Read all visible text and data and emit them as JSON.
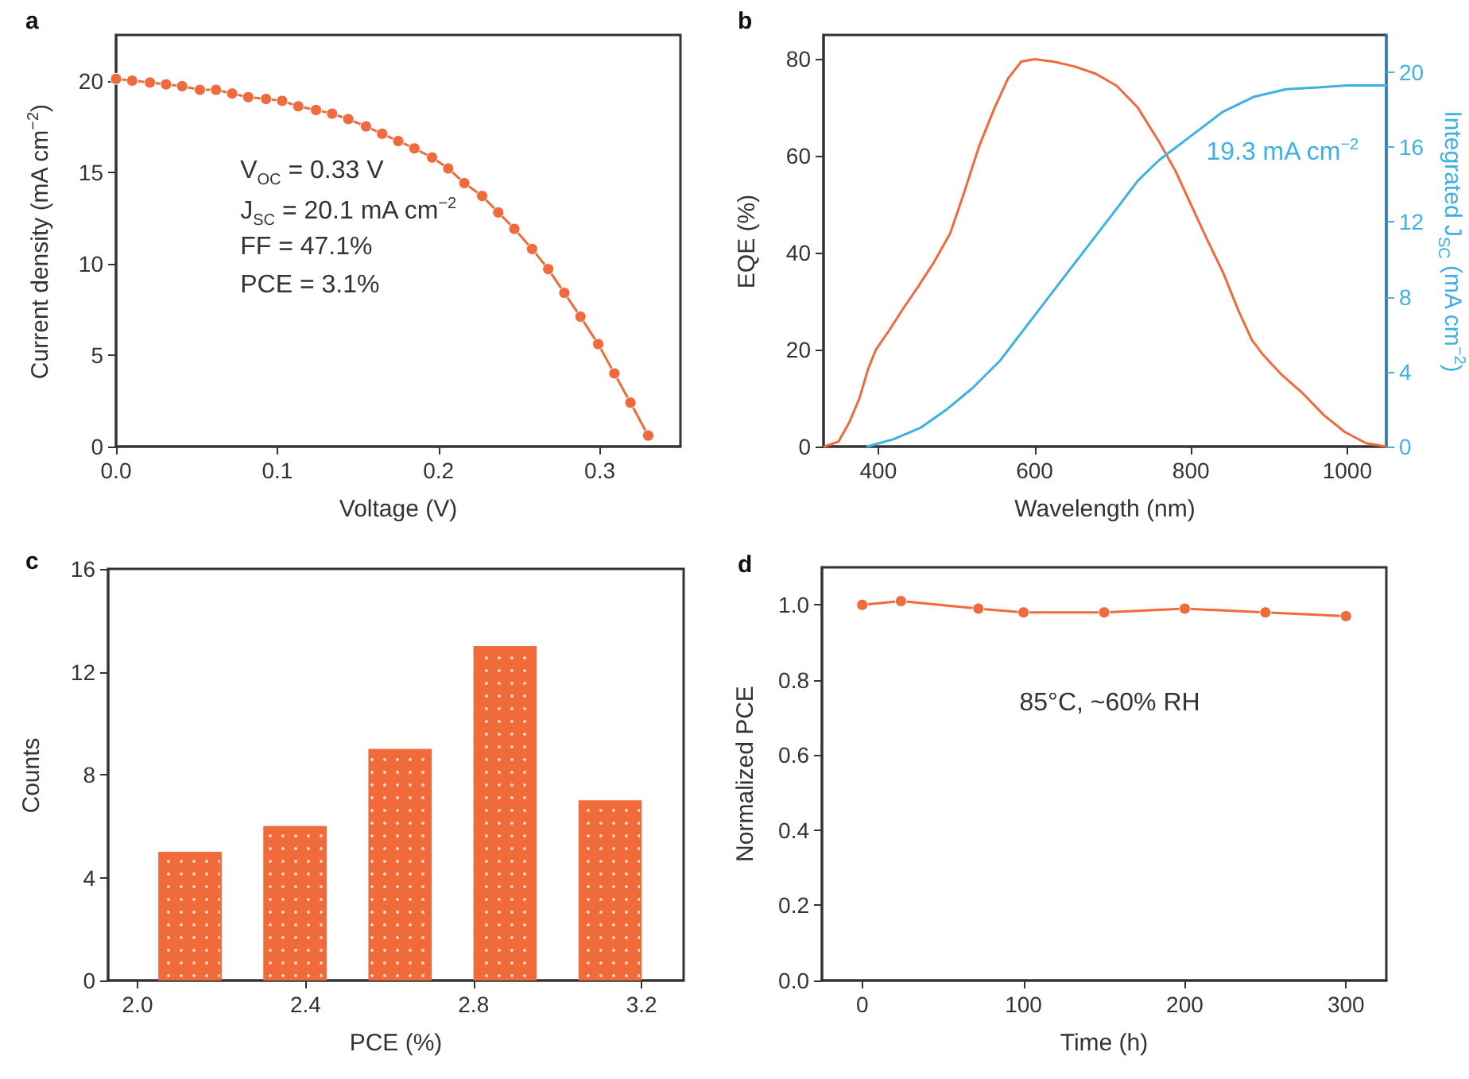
{
  "chart_data": [
    {
      "type": "line",
      "title": "a",
      "xlabel": "Voltage (V)",
      "ylabel": "Current density (mA cm$^{−2}$)",
      "annotations": [
        "V$_{OC}$ = 0.33 V",
        "J$_{SC}$ = 20.1 mA cm$^{−2}$",
        "FF = 47.1%",
        "PCE = 3.1%"
      ],
      "xlim": [
        0,
        0.35
      ],
      "xticks": [
        {
          "value": 0,
          "label": "0.0"
        },
        0.1,
        0.2,
        0.3
      ],
      "ylim": [
        0,
        22.5
      ],
      "yticks": [
        0,
        5,
        10,
        15,
        20
      ],
      "marker": "circle",
      "line_style": "solid",
      "series": [
        {
          "color": "#ef6a3c",
          "x": [
            0,
            0.01,
            0.021,
            0.031,
            0.041,
            0.052,
            0.062,
            0.072,
            0.082,
            0.093,
            0.103,
            0.113,
            0.124,
            0.134,
            0.144,
            0.155,
            0.165,
            0.175,
            0.185,
            0.196,
            0.206,
            0.216,
            0.227,
            0.237,
            0.247,
            0.258,
            0.268,
            0.278,
            0.288,
            0.299,
            0.309,
            0.319,
            0.33
          ],
          "values": [
            20.1,
            20.0,
            19.9,
            19.8,
            19.7,
            19.5,
            19.5,
            19.3,
            19.1,
            19.0,
            18.9,
            18.6,
            18.4,
            18.2,
            17.9,
            17.5,
            17.1,
            16.7,
            16.3,
            15.8,
            15.2,
            14.4,
            13.7,
            12.8,
            11.9,
            10.8,
            9.7,
            8.4,
            7.1,
            5.6,
            4.0,
            2.4,
            0.6
          ]
        }
      ]
    },
    {
      "type": "line",
      "title": "b",
      "xlabel": "Wavelength (nm)",
      "ylabel": "EQE (%)",
      "y2label": "Integrated J$_{SC}$ (mA cm$^{−2}$)",
      "annotations": [
        "19.3 mA cm$^{−2}$"
      ],
      "xlim": [
        330,
        1050
      ],
      "xticks": [
        400,
        600,
        800,
        1000
      ],
      "ylim": [
        0,
        85
      ],
      "yticks": [
        0,
        20,
        40,
        60,
        80
      ],
      "y2lim": [
        0,
        22
      ],
      "y2ticks": [
        0,
        4,
        8,
        12,
        16,
        20
      ],
      "marker": "none",
      "line_style": "solid",
      "series": [
        {
          "color": "#ef6a3c",
          "x": [
            331,
            349,
            363,
            376,
            387,
            397,
            414,
            434,
            451,
            471,
            492,
            509,
            529,
            549,
            566,
            583,
            600,
            624,
            651,
            678,
            705,
            732,
            759,
            780,
            800,
            820,
            841,
            861,
            878,
            892,
            915,
            943,
            970,
            997,
            1024,
            1050
          ],
          "values": [
            0,
            1,
            5,
            10,
            16,
            20,
            24,
            29,
            33,
            38,
            44,
            52,
            62,
            70,
            76,
            79.5,
            80,
            79.5,
            78.5,
            77,
            74.5,
            70,
            63,
            57,
            50,
            43,
            36,
            28,
            22,
            19,
            15,
            11,
            6.5,
            3,
            0.7,
            0
          ]
        },
        {
          "color": "#3eb1e4",
          "axis": "y2",
          "x": [
            386,
            420,
            454,
            488,
            520,
            556,
            600,
            644,
            692,
            732,
            759,
            800,
            841,
            881,
            922,
            963,
            1000,
            1050
          ],
          "values": [
            0,
            0.4,
            1.0,
            2.0,
            3.1,
            4.6,
            7.0,
            9.4,
            12.0,
            14.2,
            15.3,
            16.6,
            17.9,
            18.7,
            19.1,
            19.2,
            19.3,
            19.3
          ]
        }
      ]
    },
    {
      "type": "bar",
      "title": "c",
      "xlabel": "PCE (%)",
      "ylabel": "Counts",
      "xlim": [
        1.93,
        3.3
      ],
      "xticks": [
        {
          "value": 2,
          "label": "2.0"
        },
        2.4,
        2.8,
        3.2
      ],
      "ylim": [
        0,
        16
      ],
      "yticks": [
        0,
        4,
        8,
        12,
        16
      ],
      "series": [
        {
          "color": "#f06a3a",
          "x": [
            2.125,
            2.375,
            2.625,
            2.875,
            3.125
          ],
          "values": [
            5,
            6,
            9,
            13,
            7
          ]
        }
      ]
    },
    {
      "type": "line",
      "title": "d",
      "xlabel": "Time (h)",
      "ylabel": "Normalized PCE",
      "annotations": [
        "85°C, ~60% RH"
      ],
      "xlim": [
        -25,
        325
      ],
      "xticks": [
        0,
        100,
        200,
        300
      ],
      "ylim": [
        0,
        1.1
      ],
      "yticks": [
        {
          "value": 0,
          "label": "0.0"
        },
        0.2,
        0.4,
        0.6,
        0.8,
        {
          "value": 1,
          "label": "1.0"
        }
      ],
      "marker": "circle",
      "line_style": "solid",
      "series": [
        {
          "color": "#ef6a3c",
          "x": [
            0,
            24,
            72,
            100,
            150,
            200,
            250,
            300
          ],
          "values": [
            1.0,
            1.01,
            0.99,
            0.98,
            0.98,
            0.99,
            0.98,
            0.97
          ]
        }
      ]
    }
  ]
}
